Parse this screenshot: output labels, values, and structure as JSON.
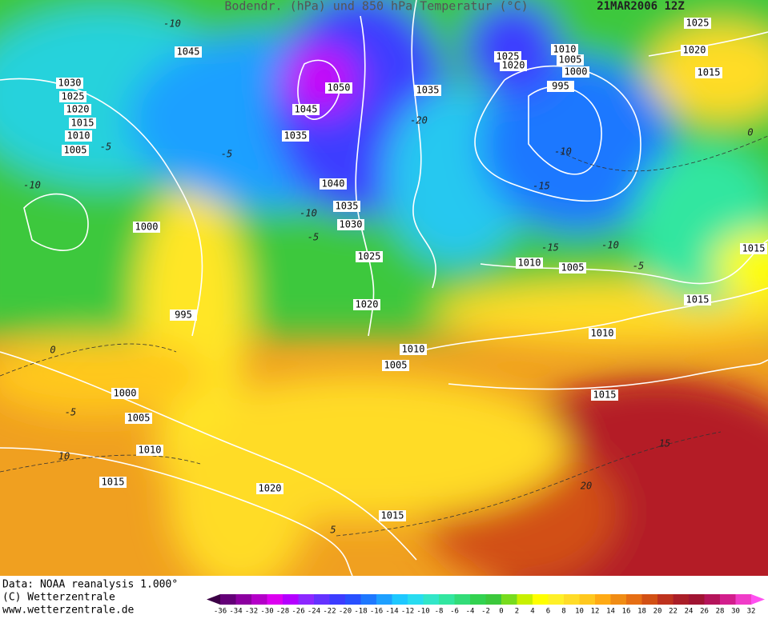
{
  "header": {
    "title": "Bodendr. (hPa) und 850 hPa Temperatur (°C)",
    "date": "21MAR2006 12Z"
  },
  "isobar_labels": [
    1045,
    1030,
    1025,
    1020,
    1015,
    1010,
    1005,
    1000,
    995,
    1050,
    1045,
    1035,
    1035,
    1040,
    1035,
    1030,
    1025,
    1020,
    1010,
    1005,
    1025,
    1020,
    1010,
    1005,
    1000,
    995,
    1010,
    1005,
    1025,
    1020,
    1015,
    1015,
    1015,
    1010,
    1015,
    1000,
    1005,
    1010,
    1015,
    1020,
    1015
  ],
  "isotherm_labels": [
    -10,
    -10,
    -5,
    -5,
    -10,
    -5,
    -20,
    -10,
    -15,
    -15,
    -10,
    -5,
    0,
    0,
    -5,
    10,
    5,
    20,
    15
  ],
  "footer": {
    "data_source": "Data: NOAA reanalysis 1.000°",
    "copyright": "(C) Wetterzentrale",
    "url": "www.wetterzentrale.de"
  },
  "colorbar": {
    "ticks": [
      -36,
      -34,
      -32,
      -30,
      -28,
      -26,
      -24,
      -22,
      -20,
      -18,
      -16,
      -14,
      -12,
      -10,
      -8,
      -6,
      -4,
      -2,
      0,
      2,
      4,
      6,
      8,
      10,
      12,
      14,
      16,
      18,
      20,
      22,
      24,
      26,
      28,
      30,
      32
    ],
    "colors": [
      "#3c0046",
      "#640078",
      "#8c00a0",
      "#b400c8",
      "#dc00f0",
      "#b400ff",
      "#8c28ff",
      "#6432ff",
      "#3c3cff",
      "#2850ff",
      "#1e78ff",
      "#1ea0ff",
      "#1ec8ff",
      "#28dcf0",
      "#32e6c8",
      "#32e6a0",
      "#32dc78",
      "#32d250",
      "#3cc83c",
      "#78dc1e",
      "#c8f000",
      "#ffff00",
      "#fff028",
      "#ffdc28",
      "#ffc81e",
      "#ffaa14",
      "#f08c14",
      "#e66e14",
      "#d25014",
      "#be321e",
      "#aa1e28",
      "#a01432",
      "#b4145a",
      "#d21e8c",
      "#f03cc8",
      "#ff50f0"
    ]
  }
}
